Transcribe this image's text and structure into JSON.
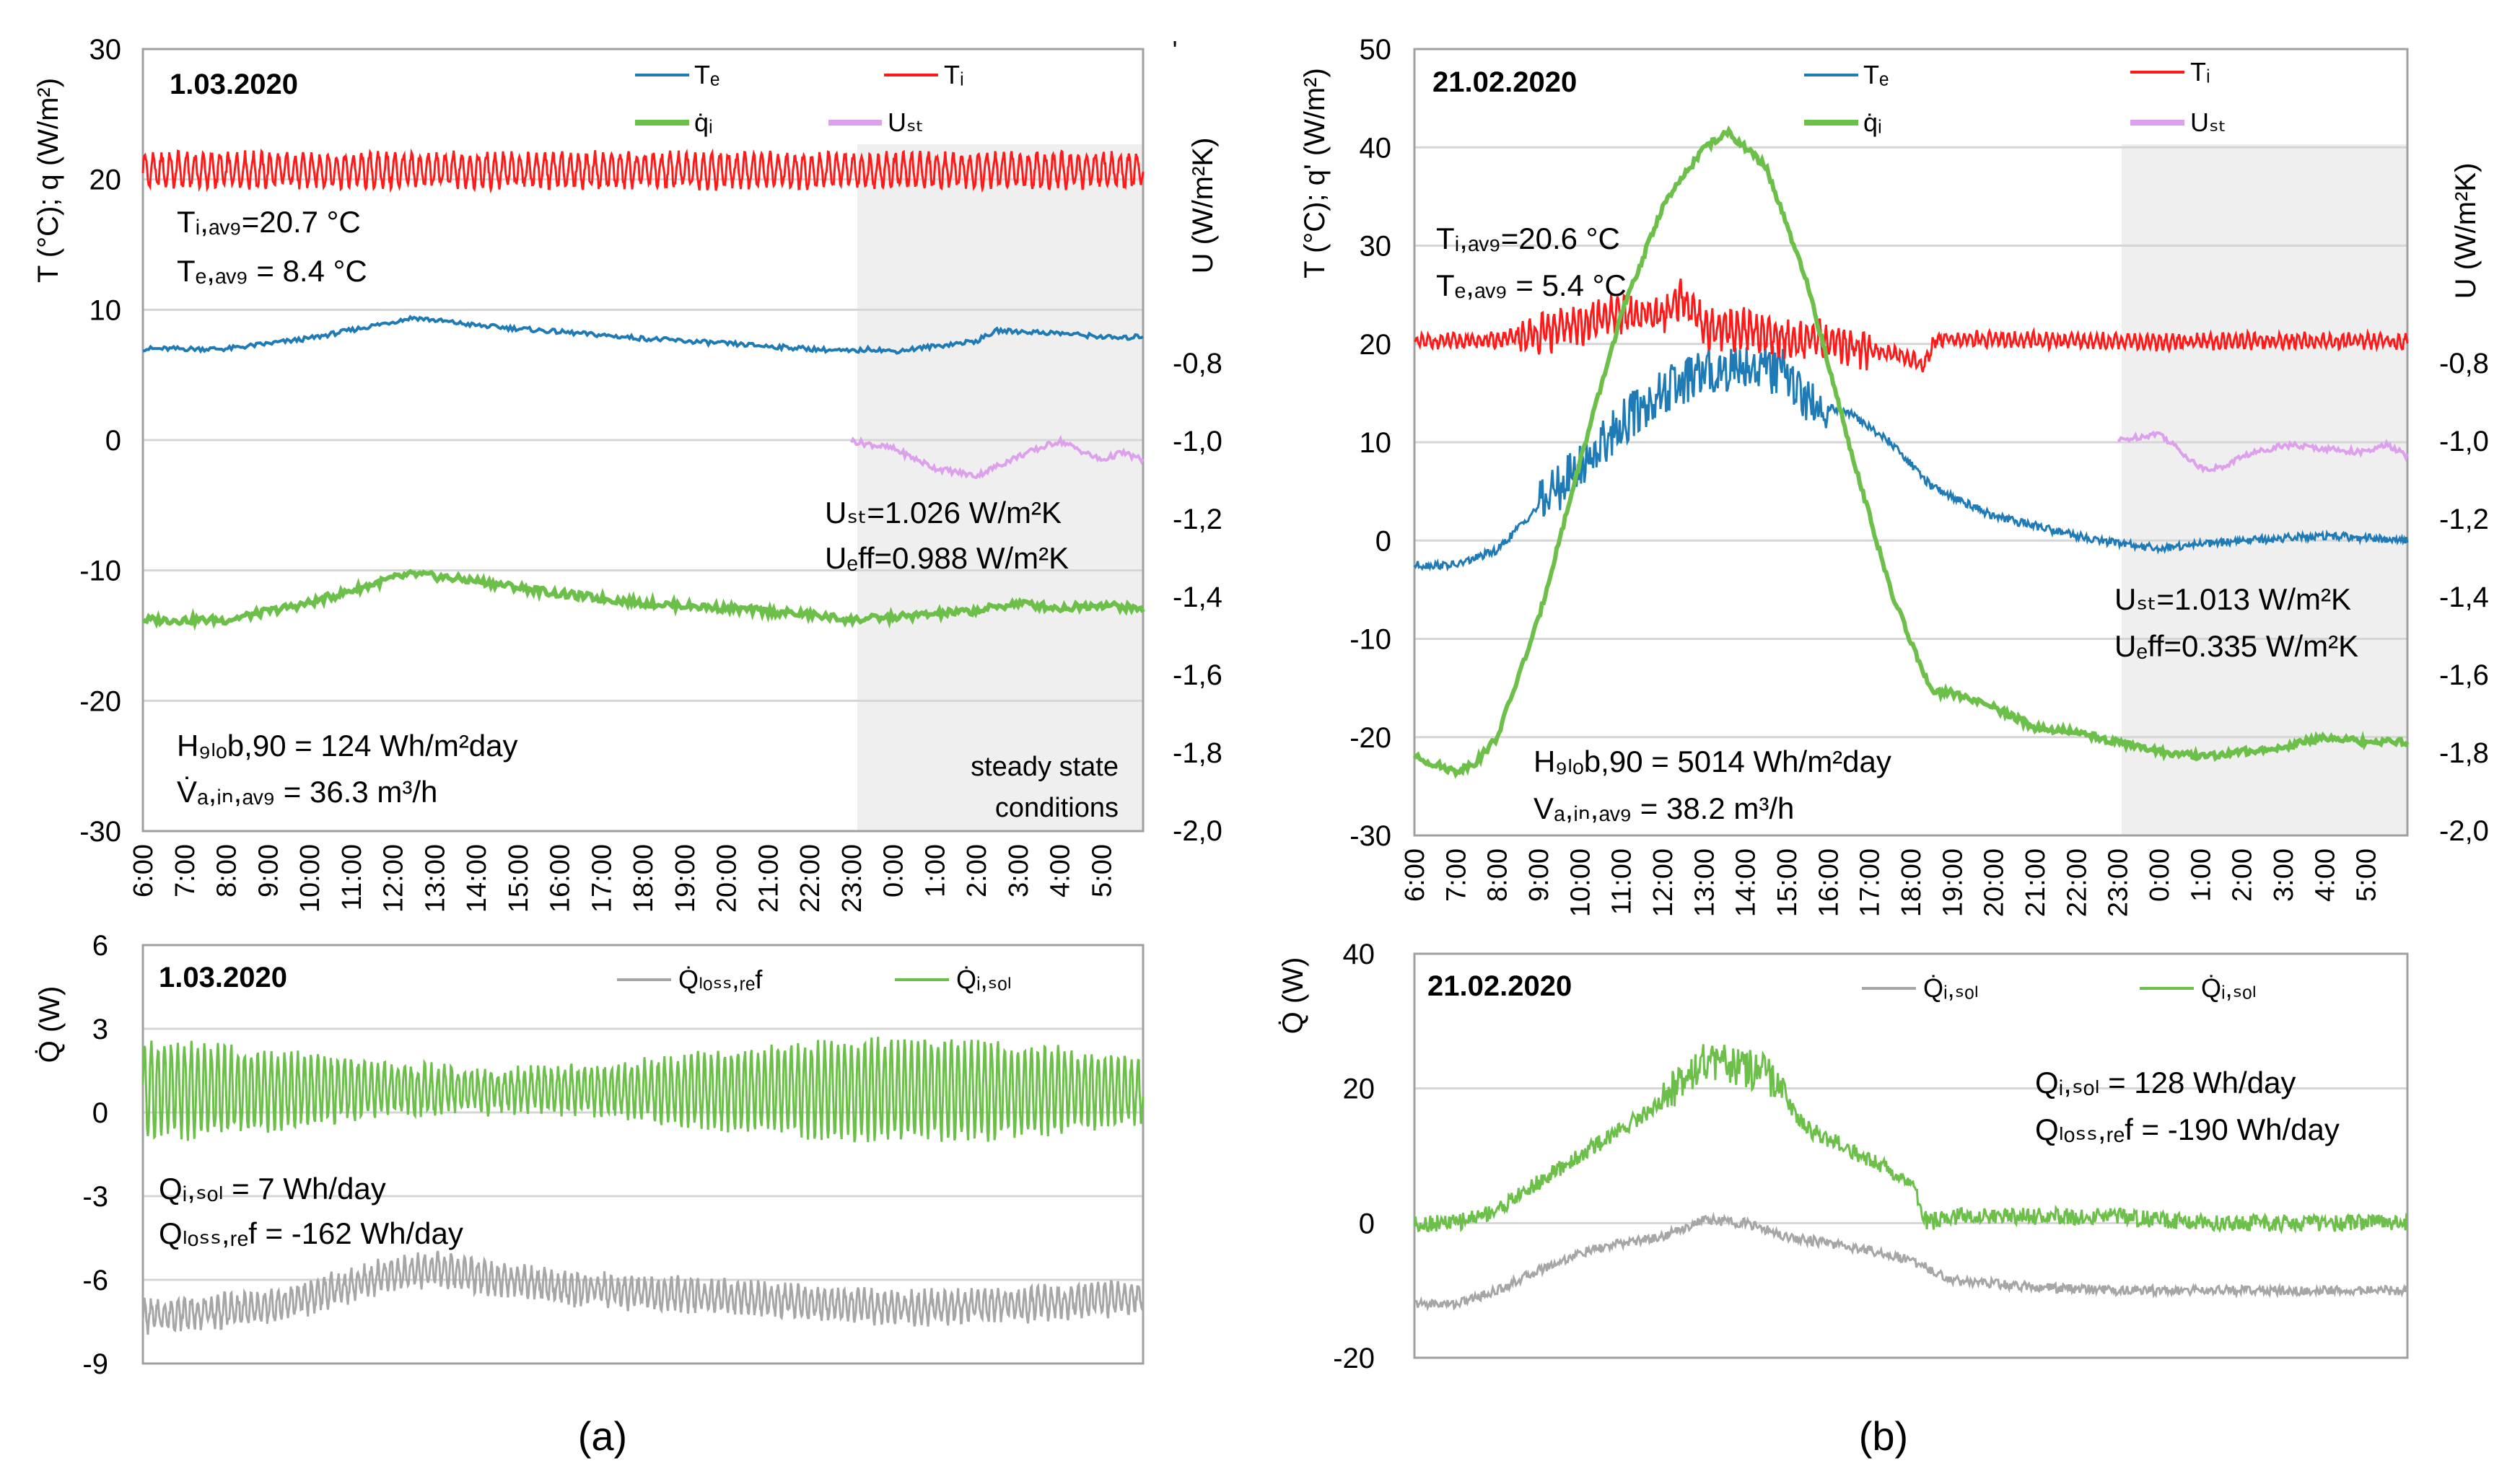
{
  "chart_data": [
    {
      "id": "a_top",
      "type": "line",
      "date": "1.03.2020",
      "ylabel_left": "T (°C); q (W/m²)",
      "ylabel_right": "U (W/m²K)",
      "yticks_left": [
        "30",
        "20",
        "10",
        "0",
        "-10",
        "-20",
        "-30"
      ],
      "yticks_right": [
        "-0,8",
        "-1,0",
        "-1,2",
        "-1,4",
        "-1,6",
        "-1,8",
        "-2,0"
      ],
      "ylim": [
        -30,
        30
      ],
      "xticks": [
        "6:00",
        "7:00",
        "8:00",
        "9:00",
        "10:00",
        "11:00",
        "12:00",
        "13:00",
        "14:00",
        "15:00",
        "16:00",
        "17:00",
        "18:00",
        "19:00",
        "20:00",
        "21:00",
        "22:00",
        "23:00",
        "0:00",
        "1:00",
        "2:00",
        "3:00",
        "4:00",
        "5:00"
      ],
      "legend": [
        {
          "name": "Tₑ",
          "color": "#1f7bb6"
        },
        {
          "name": "Tᵢ",
          "color": "#ff1a1a"
        },
        {
          "name": "q̇ᵢ",
          "color": "#6cc04a"
        },
        {
          "name": "Uₛₜ",
          "color": "#dda0ec"
        }
      ],
      "annotations": {
        "ti_avg": "Tᵢ,ₐᵥ₉=20.7 °C",
        "te_avg": "Tₑ,ₐᵥ₉ = 8.4 °C",
        "u_st": "Uₛₜ=1.026 W/m²K",
        "u_eff": "Uₑff=0.988 W/m²K",
        "h_glob": "H₉ₗₒb,90 = 124 Wh/m²day",
        "v_air": "V̇ₐ,ᵢₙ,ₐᵥ₉ = 36.3 m³/h",
        "steady_1": "steady state",
        "steady_2": "conditions"
      },
      "steady_state_from_hour": 23,
      "series": [
        {
          "name": "Ti",
          "color": "#ff1a1a",
          "mean": 20.7,
          "oscillation": 1.2
        },
        {
          "name": "Te",
          "color": "#1f7bb6",
          "x": [
            6,
            8,
            10,
            12.5,
            14,
            16,
            18,
            20,
            22,
            23,
            23.5,
            24,
            26,
            26.5,
            28,
            29.5,
            30
          ],
          "y": [
            7,
            7,
            7.8,
            9.4,
            8.8,
            8.3,
            7.8,
            7.4,
            7.0,
            6.8,
            7.0,
            6.8,
            7.6,
            8.4,
            8.2,
            7.8,
            8.0
          ]
        },
        {
          "name": "qi",
          "color": "#6cc04a",
          "x": [
            6,
            8,
            10,
            12,
            12.5,
            14,
            16,
            18,
            20,
            22,
            23,
            24,
            26,
            27,
            28,
            29,
            30
          ],
          "y": [
            -13.8,
            -13.8,
            -12.5,
            -10.6,
            -10.3,
            -10.8,
            -11.8,
            -12.5,
            -12.9,
            -13.4,
            -13.8,
            -13.6,
            -13.1,
            -12.5,
            -12.9,
            -12.6,
            -13
          ]
        },
        {
          "name": "Ust",
          "color": "#dda0ec",
          "x": [
            23,
            24,
            25,
            26,
            27,
            28,
            29,
            29.5,
            30
          ],
          "y": [
            -1.0,
            -1.02,
            -1.07,
            -1.09,
            -1.04,
            -1.0,
            -1.05,
            -1.03,
            -1.05
          ]
        }
      ]
    },
    {
      "id": "a_bottom",
      "type": "line",
      "date": "1.03.2020",
      "ylabel": "Q̇ (W)",
      "yticks": [
        "6",
        "3",
        "0",
        "-3",
        "-6",
        "-9"
      ],
      "ylim": [
        -9,
        6
      ],
      "legend": [
        {
          "name": "Q̇ₗₒₛₛ,ᵣₑf",
          "color": "#a6a6a6"
        },
        {
          "name": "Q̇ᵢ,ₛₒₗ",
          "color": "#6cc04a"
        }
      ],
      "annotations": {
        "q_sol": "Qᵢ,ₛₒₗ = 7 Wh/day",
        "q_loss": "Qₗₒₛₛ,ᵣₑf = -162 Wh/day"
      },
      "series": [
        {
          "name": "Qi_sol",
          "color": "#6cc04a",
          "mean": 0.8,
          "oscillation": 1.4
        },
        {
          "name": "Qloss_ref",
          "color": "#a6a6a6",
          "x": [
            6,
            9,
            12,
            13,
            16,
            20,
            24,
            27,
            30
          ],
          "y": [
            -7.3,
            -7.0,
            -5.8,
            -5.6,
            -6.3,
            -6.6,
            -7.0,
            -6.9,
            -6.6
          ]
        }
      ]
    },
    {
      "id": "b_top",
      "type": "line",
      "date": "21.02.2020",
      "ylabel_left": "T (°C); q' (W/m²)",
      "ylabel_right": "U (W/m²K)",
      "yticks_left": [
        "50",
        "40",
        "30",
        "20",
        "10",
        "0",
        "-10",
        "-20",
        "-30"
      ],
      "yticks_right": [
        "-0,8",
        "-1,0",
        "-1,2",
        "-1,4",
        "-1,6",
        "-1,8",
        "-2,0"
      ],
      "ylim": [
        -30,
        50
      ],
      "xticks": [
        "6:00",
        "7:00",
        "8:00",
        "9:00",
        "10:00",
        "11:00",
        "12:00",
        "13:00",
        "14:00",
        "15:00",
        "16:00",
        "17:00",
        "18:00",
        "19:00",
        "20:00",
        "21:00",
        "22:00",
        "23:00",
        "0:00",
        "1:00",
        "2:00",
        "3:00",
        "4:00",
        "5:00"
      ],
      "legend": [
        {
          "name": "Tₑ",
          "color": "#1f7bb6"
        },
        {
          "name": "Tᵢ",
          "color": "#ff1a1a"
        },
        {
          "name": "q̇ᵢ",
          "color": "#6cc04a"
        },
        {
          "name": "Uₛₜ",
          "color": "#dda0ec"
        }
      ],
      "annotations": {
        "ti_avg": "Tᵢ,ₐᵥ₉=20.6 °C",
        "te_avg": "Tₑ,ₐᵥ₉ = 5.4 °C",
        "u_st": "Uₛₜ=1.013 W/m²K",
        "u_eff": "Uₑff=0.335 W/m²K",
        "h_glob": "H₉ₗₒb,90 = 5014 Wh/m²day",
        "v_air": "Vₐ,ᵢₙ,ₐᵥ₉ = 38.2 m³/h"
      },
      "steady_state_from_hour": 23,
      "series": [
        {
          "name": "Ti",
          "color": "#ff1a1a",
          "x": [
            6,
            8,
            9,
            10,
            11,
            12,
            12.5,
            13,
            14,
            15,
            16,
            17,
            18,
            18.3,
            18.6,
            20,
            22,
            24,
            26,
            28,
            30
          ],
          "y": [
            20.2,
            20.4,
            21,
            22,
            23,
            23,
            24.5,
            21.5,
            21.5,
            20.5,
            20.3,
            19.5,
            18.5,
            17.8,
            20.5,
            20.5,
            20.3,
            20.2,
            20.3,
            20.3,
            20.2
          ]
        },
        {
          "name": "Te",
          "color": "#1f7bb6",
          "x": [
            6,
            7,
            8,
            9,
            10,
            11,
            12,
            13,
            14,
            15,
            15.5,
            16.5,
            17.5,
            18.5,
            20,
            22,
            23,
            24,
            26,
            28,
            30
          ],
          "y": [
            -2.5,
            -2.5,
            -1,
            3.5,
            7.5,
            12,
            15,
            17,
            18,
            17,
            14,
            13,
            10,
            5.5,
            2.5,
            0.5,
            -0.3,
            -0.8,
            0,
            0.5,
            0
          ]
        },
        {
          "name": "qi",
          "color": "#6cc04a",
          "x": [
            6,
            7,
            7.5,
            8,
            9,
            10,
            11,
            12,
            13,
            13.6,
            14.5,
            15.5,
            16.5,
            17.5,
            18.5,
            19,
            20,
            21,
            22,
            23,
            24,
            25,
            26,
            27,
            28,
            29,
            30
          ],
          "y": [
            -22,
            -23.5,
            -22.5,
            -20,
            -8,
            8,
            23,
            34,
            40,
            41.5,
            38,
            26,
            10,
            -5,
            -15.5,
            -15.5,
            -17,
            -19,
            -19.5,
            -20.5,
            -21.5,
            -22,
            -21.5,
            -21,
            -20,
            -20.5,
            -20.5
          ]
        },
        {
          "name": "Ust",
          "color": "#dda0ec",
          "x": [
            23,
            24,
            25,
            25.5,
            26,
            27,
            28,
            29,
            29.5,
            30
          ],
          "y": [
            -1.0,
            -0.98,
            -1.07,
            -1.07,
            -1.04,
            -1.01,
            -1.02,
            -1.03,
            -1.01,
            -1.04
          ]
        }
      ]
    },
    {
      "id": "b_bottom",
      "type": "line",
      "date": "21.02.2020",
      "ylabel": "Q̇ (W)",
      "yticks": [
        "40",
        "20",
        "0",
        "-20"
      ],
      "ylim": [
        -20,
        40
      ],
      "legend": [
        {
          "name": "Q̇ᵢ,ₛₒₗ",
          "color": "#a6a6a6"
        },
        {
          "name": "Q̇ᵢ,ₛₒₗ",
          "color": "#6cc04a"
        }
      ],
      "annotations": {
        "q_sol": "Qᵢ,ₛₒₗ = 128 Wh/day",
        "q_loss": "Qₗₒₛₛ,ᵣₑf = -190 Wh/day"
      },
      "series": [
        {
          "name": "Qi_sol",
          "color": "#6cc04a",
          "x": [
            6,
            7,
            8,
            9,
            10,
            11,
            12,
            12.5,
            13,
            14,
            14.5,
            15.5,
            16.5,
            17.5,
            18,
            18.4,
            19,
            21,
            23,
            25,
            27,
            29,
            30
          ],
          "y": [
            0,
            0,
            2,
            6,
            10,
            14,
            18,
            22,
            24,
            23,
            22,
            14,
            11,
            8,
            6,
            0,
            1,
            1,
            1,
            0,
            0,
            0,
            0
          ]
        },
        {
          "name": "Qloss_ref",
          "color": "#a6a6a6",
          "x": [
            6,
            7,
            8,
            9,
            10,
            11,
            12,
            13,
            14,
            15,
            16,
            17,
            18,
            19,
            21,
            23,
            25,
            27,
            29,
            30
          ],
          "y": [
            -12,
            -12,
            -10,
            -7,
            -4.5,
            -3,
            -2,
            0.5,
            0,
            -2,
            -3,
            -4,
            -5.5,
            -8.5,
            -9.5,
            -10,
            -10,
            -10,
            -10,
            -10
          ]
        }
      ]
    }
  ],
  "captions": {
    "a": "(a)",
    "b": "(b)"
  }
}
